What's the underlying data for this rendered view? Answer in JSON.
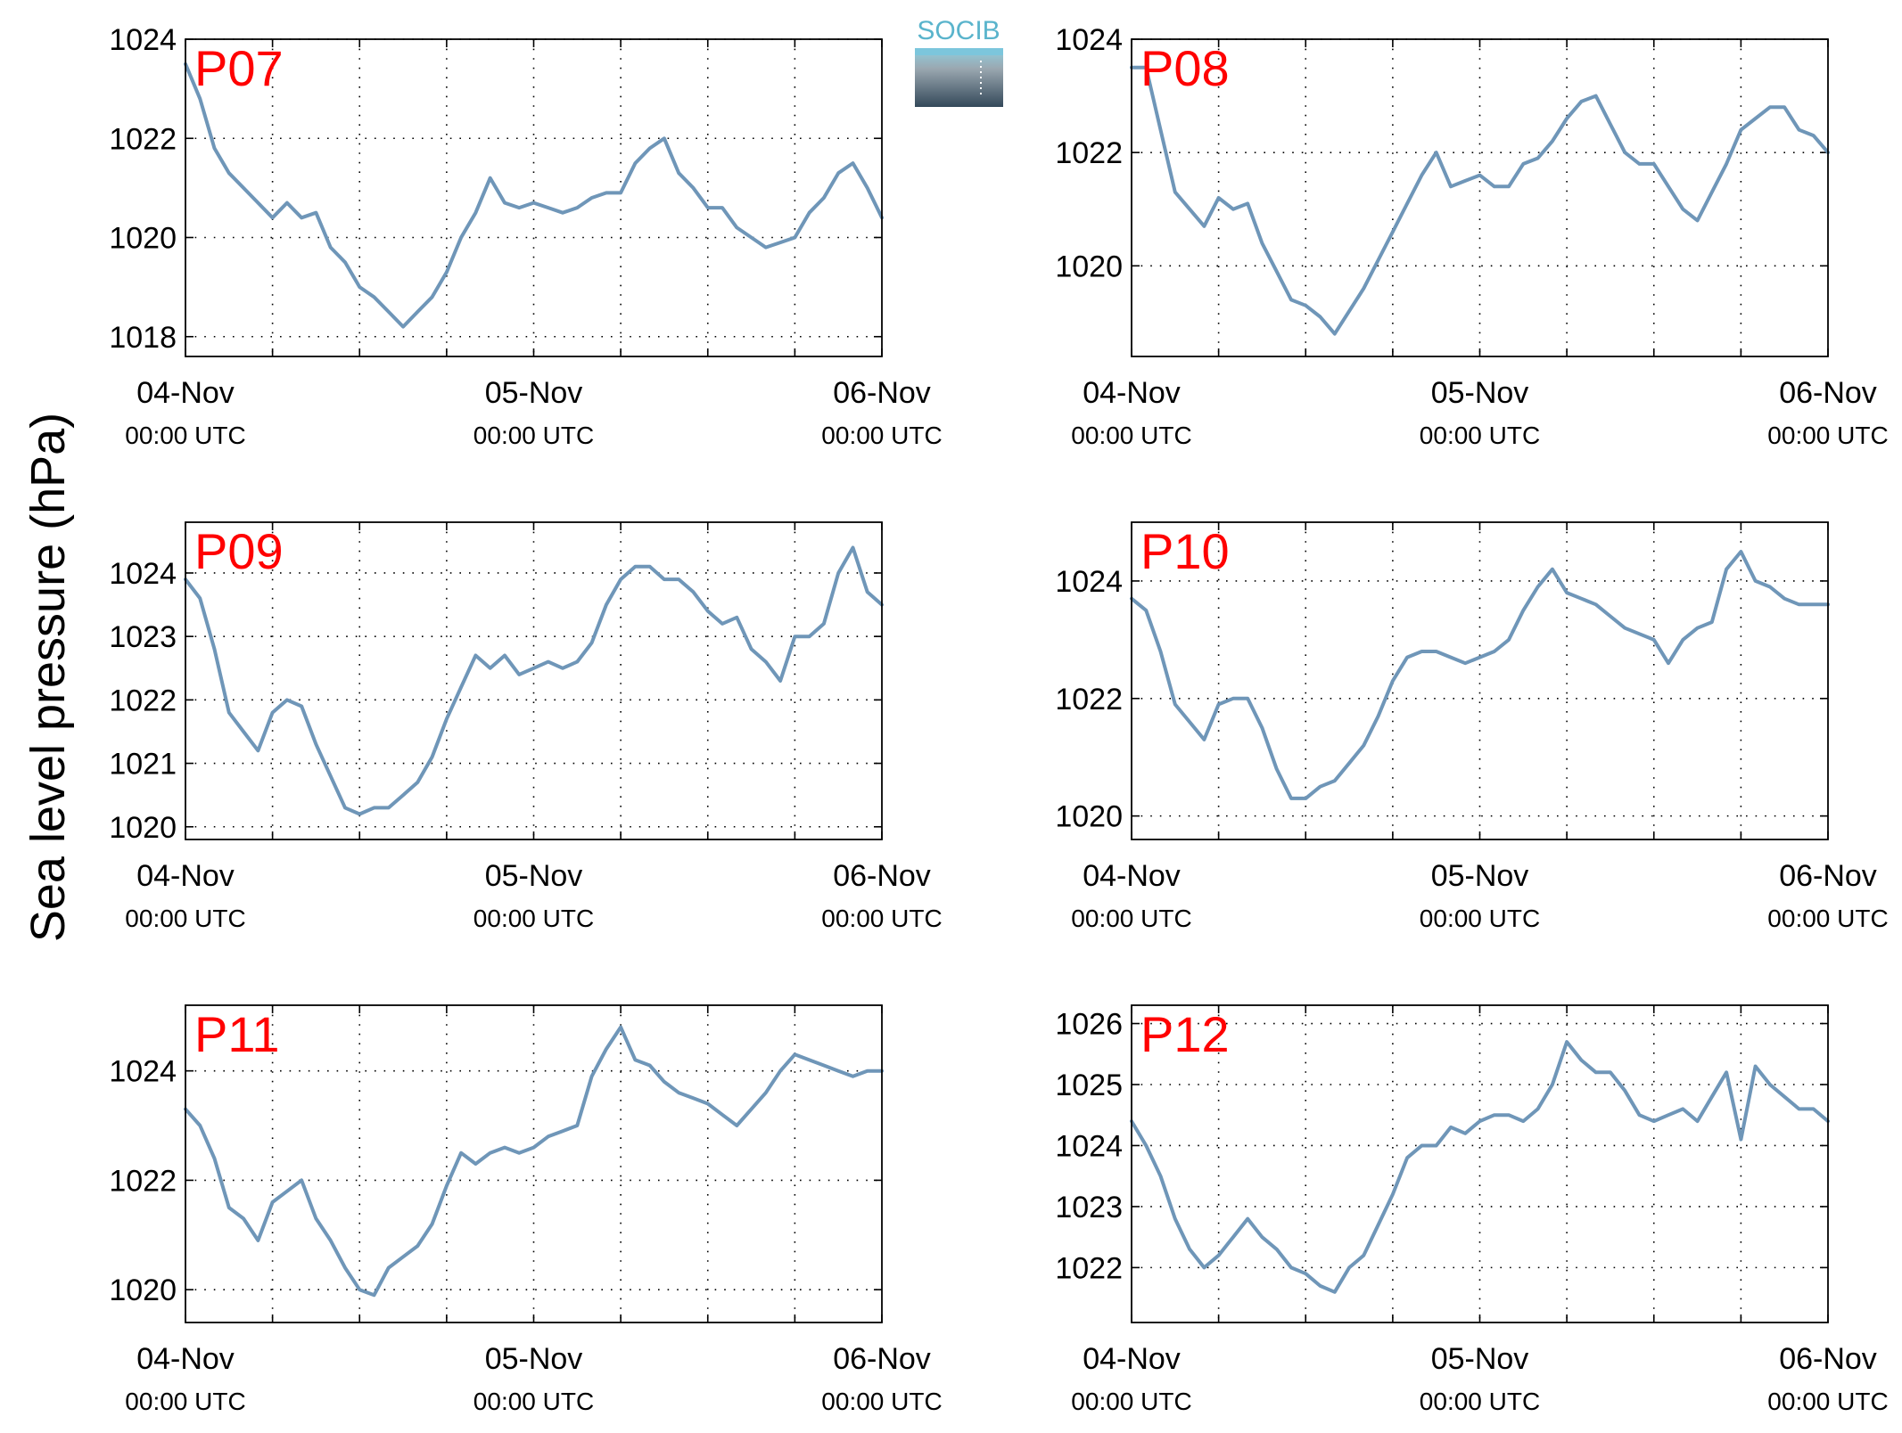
{
  "figure": {
    "ylabel": "Sea level pressure (hPa)",
    "logo_text": "SOCIB",
    "colors": {
      "line": "#6f96b8",
      "station_label": "#ff0000",
      "axes": "#000000",
      "grid": "#000000",
      "logo_accent": "#5ab4cc"
    }
  },
  "chart_data": [
    {
      "type": "line",
      "station": "P07",
      "x_ticks": [
        {
          "x": 0,
          "date": "04-Nov",
          "time": "00:00 UTC"
        },
        {
          "x": 24,
          "date": "05-Nov",
          "time": "00:00 UTC"
        },
        {
          "x": 48,
          "date": "06-Nov",
          "time": "00:00 UTC"
        }
      ],
      "x_minor_ticks": [
        6,
        12,
        18,
        30,
        36,
        42
      ],
      "xlim": [
        0,
        48
      ],
      "ylim": [
        1017.6,
        1024.0
      ],
      "yticks": [
        1018,
        1020,
        1022,
        1024
      ],
      "grid": true,
      "x": [
        0,
        1,
        2,
        3,
        4,
        5,
        6,
        7,
        8,
        9,
        10,
        11,
        12,
        13,
        14,
        15,
        16,
        17,
        18,
        19,
        20,
        21,
        22,
        23,
        24,
        25,
        26,
        27,
        28,
        29,
        30,
        31,
        32,
        33,
        34,
        35,
        36,
        37,
        38,
        39,
        40,
        41,
        42,
        43,
        44,
        45,
        46,
        47,
        48
      ],
      "y": [
        1023.5,
        1022.8,
        1021.8,
        1021.3,
        1021.0,
        1020.7,
        1020.4,
        1020.7,
        1020.4,
        1020.5,
        1019.8,
        1019.5,
        1019.0,
        1018.8,
        1018.5,
        1018.2,
        1018.5,
        1018.8,
        1019.3,
        1020.0,
        1020.5,
        1021.2,
        1020.7,
        1020.6,
        1020.7,
        1020.6,
        1020.5,
        1020.6,
        1020.8,
        1020.9,
        1020.9,
        1021.5,
        1021.8,
        1022.0,
        1021.3,
        1021.0,
        1020.6,
        1020.6,
        1020.2,
        1020.0,
        1019.8,
        1019.9,
        1020.0,
        1020.5,
        1020.8,
        1021.3,
        1021.5,
        1021.0,
        1020.4
      ]
    },
    {
      "type": "line",
      "station": "P08",
      "x_ticks": [
        {
          "x": 0,
          "date": "04-Nov",
          "time": "00:00 UTC"
        },
        {
          "x": 24,
          "date": "05-Nov",
          "time": "00:00 UTC"
        },
        {
          "x": 48,
          "date": "06-Nov",
          "time": "00:00 UTC"
        }
      ],
      "x_minor_ticks": [
        6,
        12,
        18,
        30,
        36,
        42
      ],
      "xlim": [
        0,
        48
      ],
      "ylim": [
        1018.4,
        1024.0
      ],
      "yticks": [
        1020,
        1022,
        1024
      ],
      "grid": true,
      "x": [
        0,
        1,
        2,
        3,
        4,
        5,
        6,
        7,
        8,
        9,
        10,
        11,
        12,
        13,
        14,
        15,
        16,
        17,
        18,
        19,
        20,
        21,
        22,
        23,
        24,
        25,
        26,
        27,
        28,
        29,
        30,
        31,
        32,
        33,
        34,
        35,
        36,
        37,
        38,
        39,
        40,
        41,
        42,
        43,
        44,
        45,
        46,
        47,
        48
      ],
      "y": [
        1023.5,
        1023.5,
        1022.4,
        1021.3,
        1021.0,
        1020.7,
        1021.2,
        1021.0,
        1021.1,
        1020.4,
        1019.9,
        1019.4,
        1019.3,
        1019.1,
        1018.8,
        1019.2,
        1019.6,
        1020.1,
        1020.6,
        1021.1,
        1021.6,
        1022.0,
        1021.4,
        1021.5,
        1021.6,
        1021.4,
        1021.4,
        1021.8,
        1021.9,
        1022.2,
        1022.6,
        1022.9,
        1023.0,
        1022.5,
        1022.0,
        1021.8,
        1021.8,
        1021.4,
        1021.0,
        1020.8,
        1021.3,
        1021.8,
        1022.4,
        1022.6,
        1022.8,
        1022.8,
        1022.4,
        1022.3,
        1022.0
      ]
    },
    {
      "type": "line",
      "station": "P09",
      "x_ticks": [
        {
          "x": 0,
          "date": "04-Nov",
          "time": "00:00 UTC"
        },
        {
          "x": 24,
          "date": "05-Nov",
          "time": "00:00 UTC"
        },
        {
          "x": 48,
          "date": "06-Nov",
          "time": "00:00 UTC"
        }
      ],
      "x_minor_ticks": [
        6,
        12,
        18,
        30,
        36,
        42
      ],
      "xlim": [
        0,
        48
      ],
      "ylim": [
        1019.8,
        1024.8
      ],
      "yticks": [
        1020,
        1021,
        1022,
        1023,
        1024
      ],
      "grid": true,
      "x": [
        0,
        1,
        2,
        3,
        4,
        5,
        6,
        7,
        8,
        9,
        10,
        11,
        12,
        13,
        14,
        15,
        16,
        17,
        18,
        19,
        20,
        21,
        22,
        23,
        24,
        25,
        26,
        27,
        28,
        29,
        30,
        31,
        32,
        33,
        34,
        35,
        36,
        37,
        38,
        39,
        40,
        41,
        42,
        43,
        44,
        45,
        46,
        47,
        48
      ],
      "y": [
        1023.9,
        1023.6,
        1022.8,
        1021.8,
        1021.5,
        1021.2,
        1021.8,
        1022.0,
        1021.9,
        1021.3,
        1020.8,
        1020.3,
        1020.2,
        1020.3,
        1020.3,
        1020.5,
        1020.7,
        1021.1,
        1021.7,
        1022.2,
        1022.7,
        1022.5,
        1022.7,
        1022.4,
        1022.5,
        1022.6,
        1022.5,
        1022.6,
        1022.9,
        1023.5,
        1023.9,
        1024.1,
        1024.1,
        1023.9,
        1023.9,
        1023.7,
        1023.4,
        1023.2,
        1023.3,
        1022.8,
        1022.6,
        1022.3,
        1023.0,
        1023.0,
        1023.2,
        1024.0,
        1024.4,
        1023.7,
        1023.5
      ]
    },
    {
      "type": "line",
      "station": "P10",
      "x_ticks": [
        {
          "x": 0,
          "date": "04-Nov",
          "time": "00:00 UTC"
        },
        {
          "x": 24,
          "date": "05-Nov",
          "time": "00:00 UTC"
        },
        {
          "x": 48,
          "date": "06-Nov",
          "time": "00:00 UTC"
        }
      ],
      "x_minor_ticks": [
        6,
        12,
        18,
        30,
        36,
        42
      ],
      "xlim": [
        0,
        48
      ],
      "ylim": [
        1019.6,
        1025.0
      ],
      "yticks": [
        1020,
        1022,
        1024
      ],
      "grid": true,
      "x": [
        0,
        1,
        2,
        3,
        4,
        5,
        6,
        7,
        8,
        9,
        10,
        11,
        12,
        13,
        14,
        15,
        16,
        17,
        18,
        19,
        20,
        21,
        22,
        23,
        24,
        25,
        26,
        27,
        28,
        29,
        30,
        31,
        32,
        33,
        34,
        35,
        36,
        37,
        38,
        39,
        40,
        41,
        42,
        43,
        44,
        45,
        46,
        47,
        48
      ],
      "y": [
        1023.7,
        1023.5,
        1022.8,
        1021.9,
        1021.6,
        1021.3,
        1021.9,
        1022.0,
        1022.0,
        1021.5,
        1020.8,
        1020.3,
        1020.3,
        1020.5,
        1020.6,
        1020.9,
        1021.2,
        1021.7,
        1022.3,
        1022.7,
        1022.8,
        1022.8,
        1022.7,
        1022.6,
        1022.7,
        1022.8,
        1023.0,
        1023.5,
        1023.9,
        1024.2,
        1023.8,
        1023.7,
        1023.6,
        1023.4,
        1023.2,
        1023.1,
        1023.0,
        1022.6,
        1023.0,
        1023.2,
        1023.3,
        1024.2,
        1024.5,
        1024.0,
        1023.9,
        1023.7,
        1023.6,
        1023.6,
        1023.6
      ]
    },
    {
      "type": "line",
      "station": "P11",
      "x_ticks": [
        {
          "x": 0,
          "date": "04-Nov",
          "time": "00:00 UTC"
        },
        {
          "x": 24,
          "date": "05-Nov",
          "time": "00:00 UTC"
        },
        {
          "x": 48,
          "date": "06-Nov",
          "time": "00:00 UTC"
        }
      ],
      "x_minor_ticks": [
        6,
        12,
        18,
        30,
        36,
        42
      ],
      "xlim": [
        0,
        48
      ],
      "ylim": [
        1019.4,
        1025.2
      ],
      "yticks": [
        1020,
        1022,
        1024
      ],
      "grid": true,
      "x": [
        0,
        1,
        2,
        3,
        4,
        5,
        6,
        7,
        8,
        9,
        10,
        11,
        12,
        13,
        14,
        15,
        16,
        17,
        18,
        19,
        20,
        21,
        22,
        23,
        24,
        25,
        26,
        27,
        28,
        29,
        30,
        31,
        32,
        33,
        34,
        35,
        36,
        37,
        38,
        39,
        40,
        41,
        42,
        43,
        44,
        45,
        46,
        47,
        48
      ],
      "y": [
        1023.3,
        1023.0,
        1022.4,
        1021.5,
        1021.3,
        1020.9,
        1021.6,
        1021.8,
        1022.0,
        1021.3,
        1020.9,
        1020.4,
        1020.0,
        1019.9,
        1020.4,
        1020.6,
        1020.8,
        1021.2,
        1021.9,
        1022.5,
        1022.3,
        1022.5,
        1022.6,
        1022.5,
        1022.6,
        1022.8,
        1022.9,
        1023.0,
        1023.9,
        1024.4,
        1024.8,
        1024.2,
        1024.1,
        1023.8,
        1023.6,
        1023.5,
        1023.4,
        1023.2,
        1023.0,
        1023.3,
        1023.6,
        1024.0,
        1024.3,
        1024.2,
        1024.1,
        1024.0,
        1023.9,
        1024.0,
        1024.0
      ]
    },
    {
      "type": "line",
      "station": "P12",
      "x_ticks": [
        {
          "x": 0,
          "date": "04-Nov",
          "time": "00:00 UTC"
        },
        {
          "x": 24,
          "date": "05-Nov",
          "time": "00:00 UTC"
        },
        {
          "x": 48,
          "date": "06-Nov",
          "time": "00:00 UTC"
        }
      ],
      "x_minor_ticks": [
        6,
        12,
        18,
        30,
        36,
        42
      ],
      "xlim": [
        0,
        48
      ],
      "ylim": [
        1021.1,
        1026.3
      ],
      "yticks": [
        1022,
        1023,
        1024,
        1025,
        1026
      ],
      "grid": true,
      "x": [
        0,
        1,
        2,
        3,
        4,
        5,
        6,
        7,
        8,
        9,
        10,
        11,
        12,
        13,
        14,
        15,
        16,
        17,
        18,
        19,
        20,
        21,
        22,
        23,
        24,
        25,
        26,
        27,
        28,
        29,
        30,
        31,
        32,
        33,
        34,
        35,
        36,
        37,
        38,
        39,
        40,
        41,
        42,
        43,
        44,
        45,
        46,
        47,
        48
      ],
      "y": [
        1024.4,
        1024.0,
        1023.5,
        1022.8,
        1022.3,
        1022.0,
        1022.2,
        1022.5,
        1022.8,
        1022.5,
        1022.3,
        1022.0,
        1021.9,
        1021.7,
        1021.6,
        1022.0,
        1022.2,
        1022.7,
        1023.2,
        1023.8,
        1024.0,
        1024.0,
        1024.3,
        1024.2,
        1024.4,
        1024.5,
        1024.5,
        1024.4,
        1024.6,
        1025.0,
        1025.7,
        1025.4,
        1025.2,
        1025.2,
        1024.9,
        1024.5,
        1024.4,
        1024.5,
        1024.6,
        1024.4,
        1024.8,
        1025.2,
        1024.1,
        1025.3,
        1025.0,
        1024.8,
        1024.6,
        1024.6,
        1024.4
      ]
    }
  ]
}
